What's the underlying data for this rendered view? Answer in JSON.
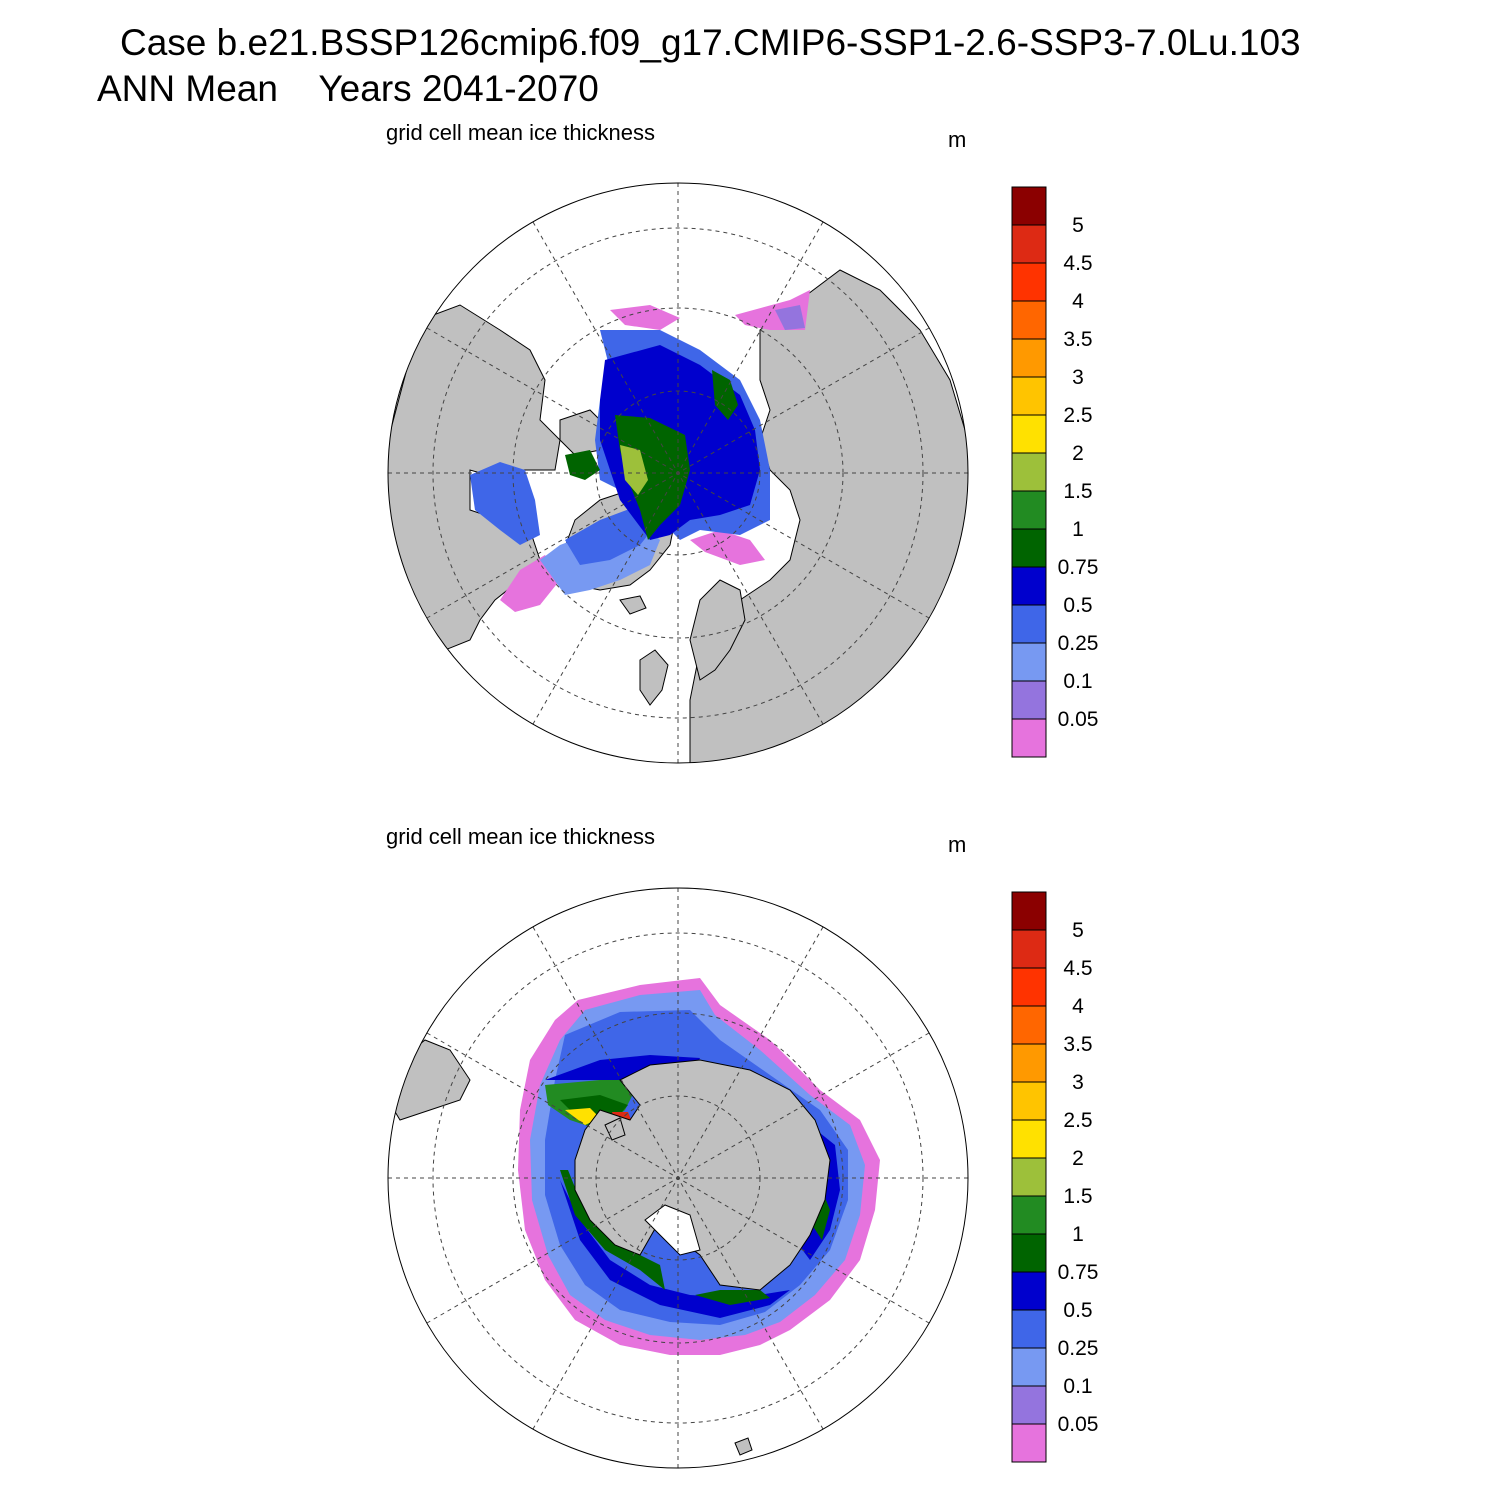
{
  "title": {
    "line1": "Case b.e21.BSSP126cmip6.f09_g17.CMIP6-SSP1-2.6-SSP3-7.0Lu.103",
    "line2": "ANN Mean    Years 2041-2070"
  },
  "panels": [
    {
      "id": "north",
      "label": "grid cell mean ice thickness",
      "units": "m",
      "hemisphere": "north"
    },
    {
      "id": "south",
      "label": "grid cell mean ice thickness",
      "units": "m",
      "hemisphere": "south"
    }
  ],
  "colorbar": {
    "labels": [
      "5",
      "4.5",
      "4",
      "3.5",
      "3",
      "2.5",
      "2",
      "1.5",
      "1",
      "0.75",
      "0.5",
      "0.25",
      "0.1",
      "0.05"
    ],
    "colors": [
      "#8b0000",
      "#dd2a14",
      "#ff3300",
      "#ff6600",
      "#ff9900",
      "#ffc400",
      "#ffe100",
      "#9dc03a",
      "#228b22",
      "#006400",
      "#0000cd",
      "#3f66e8",
      "#7799f2",
      "#9474de",
      "#e673dd"
    ]
  },
  "colors": {
    "land": "#c0c0c0",
    "ocean": "#ffffff",
    "gridline": "#444444"
  }
}
